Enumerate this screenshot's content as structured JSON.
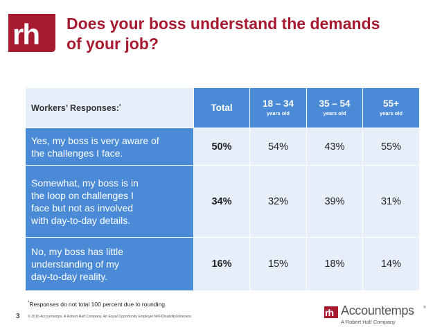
{
  "slide": {
    "title_lines": [
      "Does your boss understand the demands",
      "of your job?"
    ],
    "logo_text": "rh",
    "page_number": "3"
  },
  "table": {
    "header_label": "Workers’ Responses:",
    "header_marker": "*",
    "columns": [
      {
        "name": "Total",
        "sub": ""
      },
      {
        "name": "18 – 34",
        "sub": "years old"
      },
      {
        "name": "35 – 54",
        "sub": "years old"
      },
      {
        "name": "55+",
        "sub": "years old"
      }
    ],
    "rows": [
      {
        "label_lines": [
          "Yes, my boss is very aware of",
          "the challenges I face."
        ],
        "values": [
          "50%",
          "54%",
          "43%",
          "55%"
        ]
      },
      {
        "label_lines": [
          "Somewhat, my boss is in",
          "the loop on challenges I",
          "face but not as involved",
          "with day-to-day details."
        ],
        "values": [
          "34%",
          "32%",
          "39%",
          "31%"
        ]
      },
      {
        "label_lines": [
          "No, my boss has little",
          "understanding of my",
          "day-to-day reality."
        ],
        "values": [
          "16%",
          "15%",
          "18%",
          "14%"
        ]
      }
    ]
  },
  "footer": {
    "footnote_marker": "*",
    "footnote": "Responses do not total 100 percent due to rounding.",
    "legal": "© 2016 Accountemps. A Robert Half Company. An Equal Opportunity Employer M/F/Disability/Veterans.",
    "brand_name": "Accountemps",
    "brand_reg": "®",
    "brand_tagline": "A Robert Half Company"
  },
  "colors": {
    "accent_red": "#a6192e",
    "table_blue": "#4a8ad6",
    "table_light": "#e6eefa"
  }
}
